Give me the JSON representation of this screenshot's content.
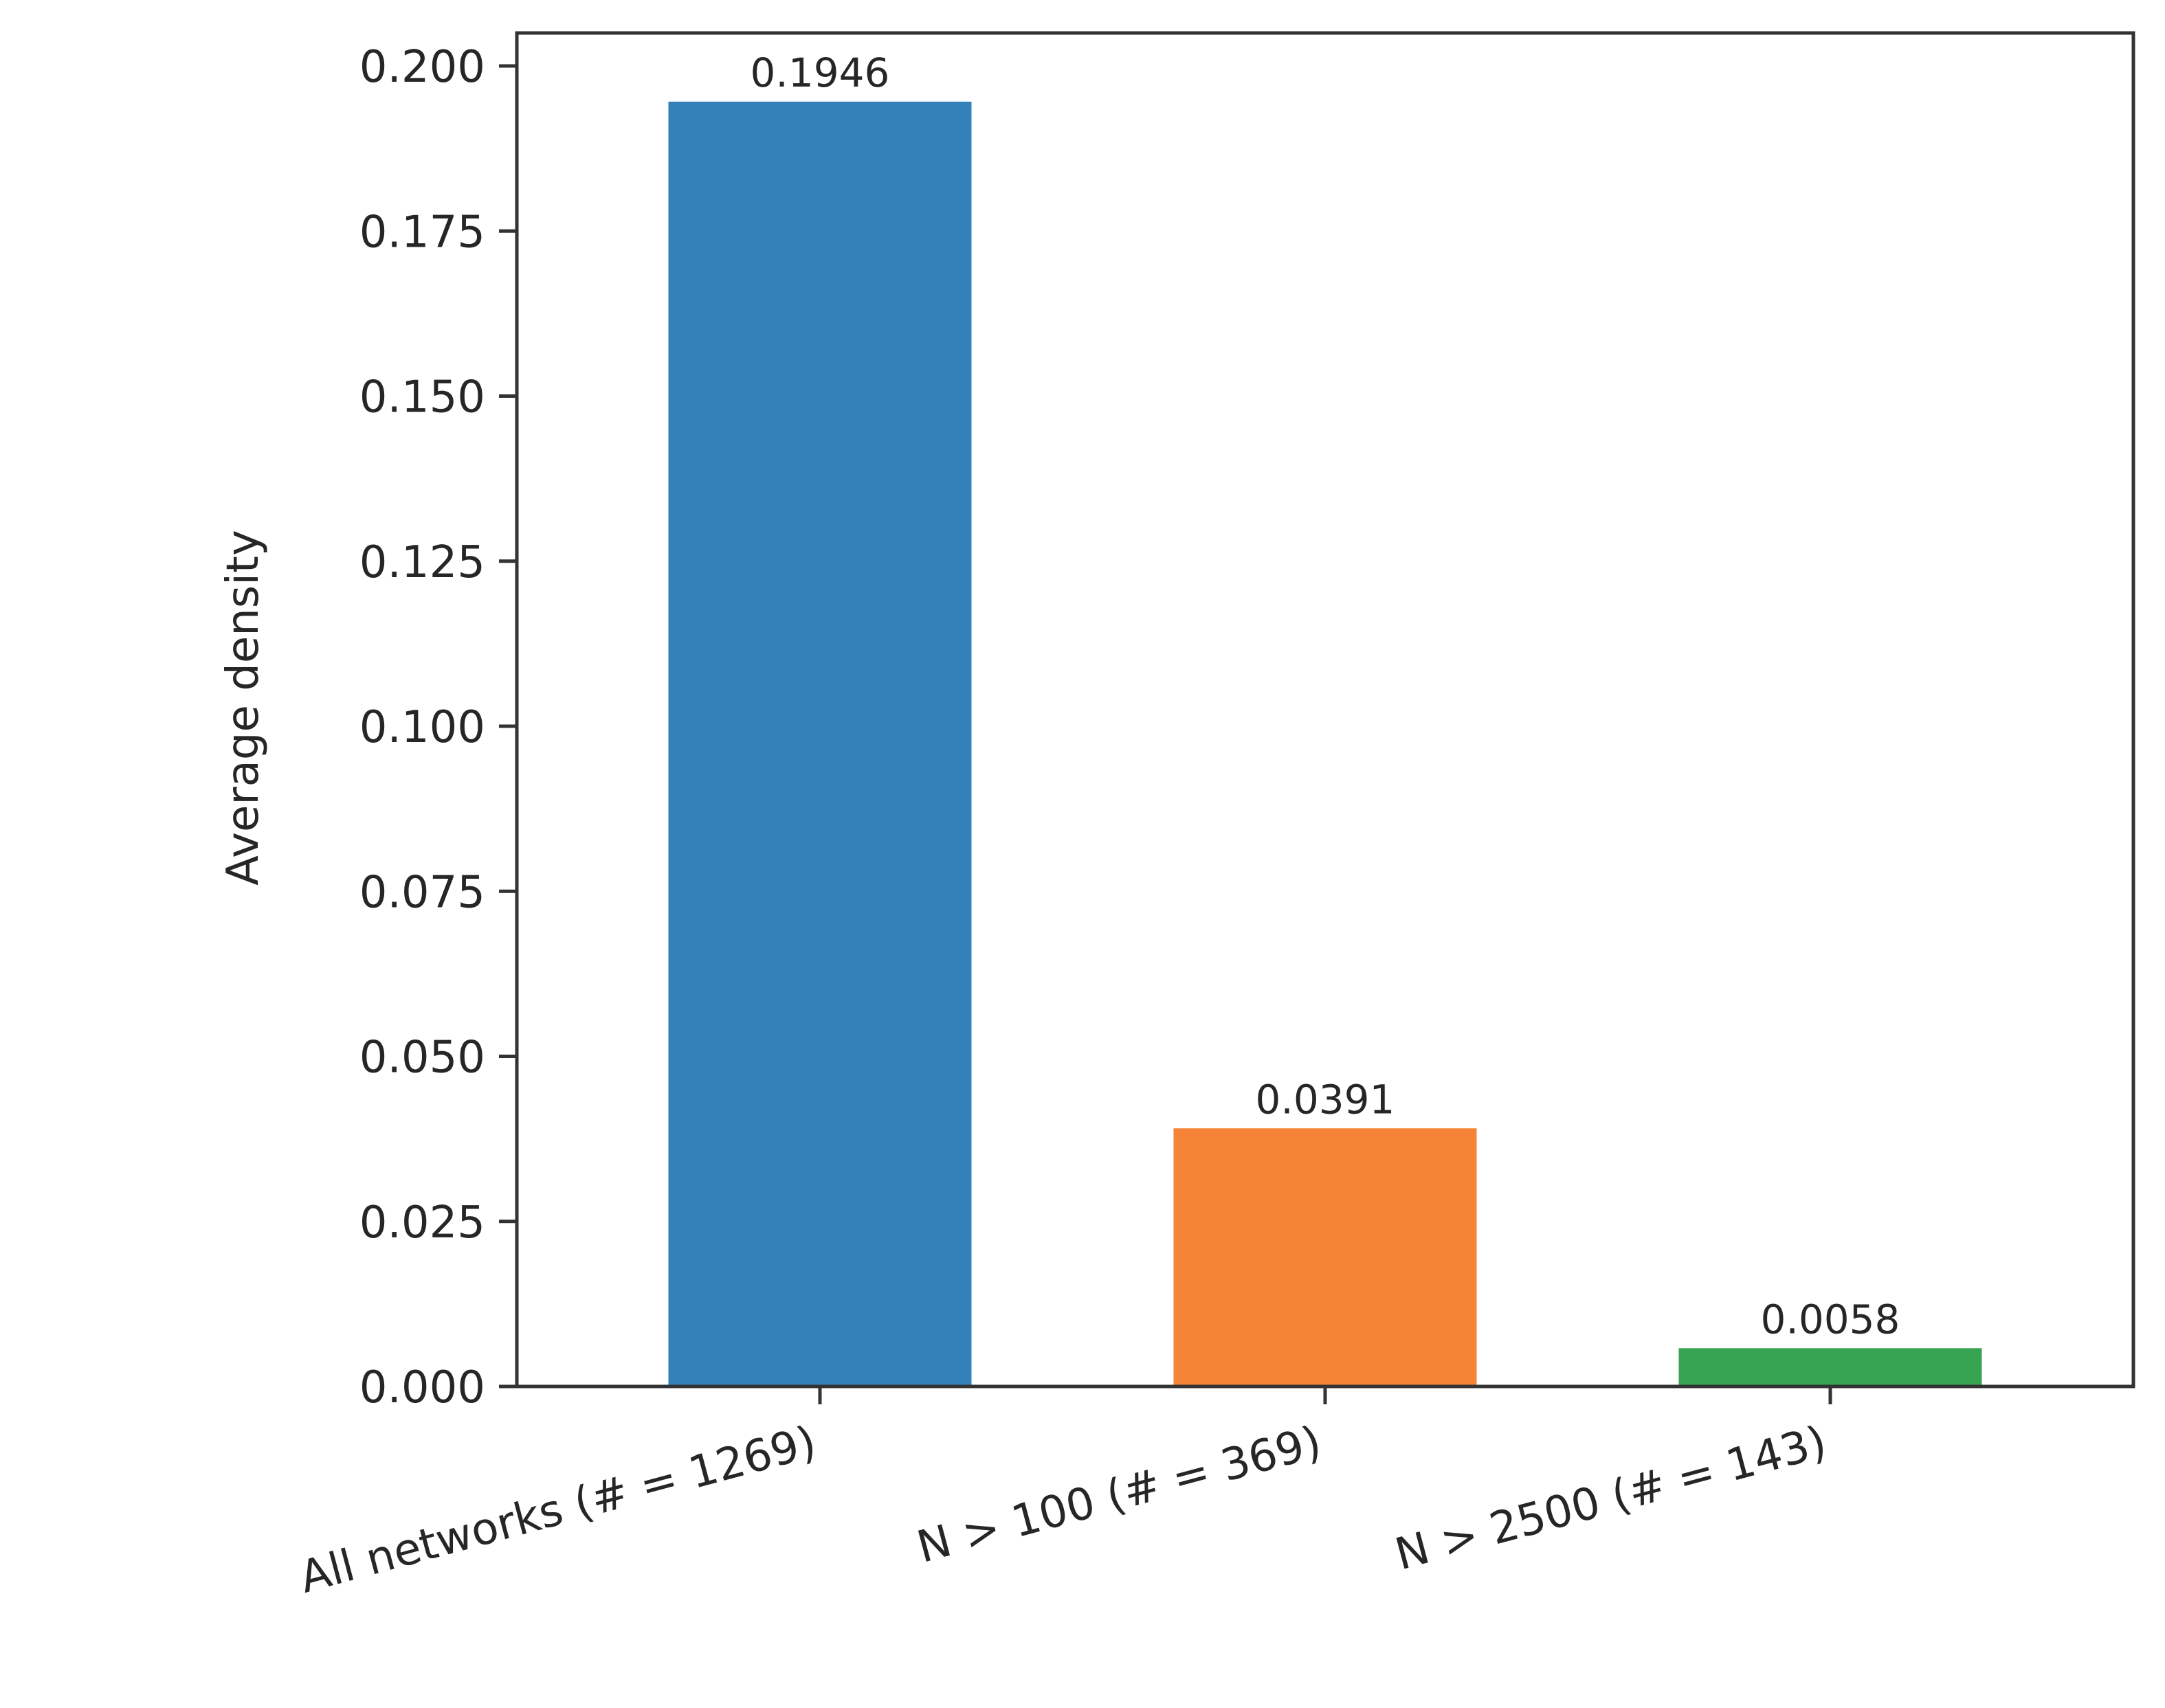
{
  "chart_data": {
    "type": "bar",
    "categories": [
      "All networks (# = 1269)",
      "N > 100 (# = 369)",
      "N > 2500 (# = 143)"
    ],
    "values": [
      0.1946,
      0.0391,
      0.0058
    ],
    "data_labels": [
      "0.1946",
      "0.0391",
      "0.0058"
    ],
    "colors": [
      "#3480b8",
      "#f58436",
      "#37a453"
    ],
    "title": "",
    "xlabel": "",
    "ylabel": "Average density",
    "ylim": [
      0,
      0.205
    ],
    "yticks": [
      0.0,
      0.025,
      0.05,
      0.075,
      0.1,
      0.125,
      0.15,
      0.175,
      0.2
    ],
    "ytick_labels": [
      "0.000",
      "0.025",
      "0.050",
      "0.075",
      "0.100",
      "0.125",
      "0.150",
      "0.175",
      "0.200"
    ],
    "xtick_rotation_deg": 15,
    "grid": false,
    "legend": "none"
  }
}
